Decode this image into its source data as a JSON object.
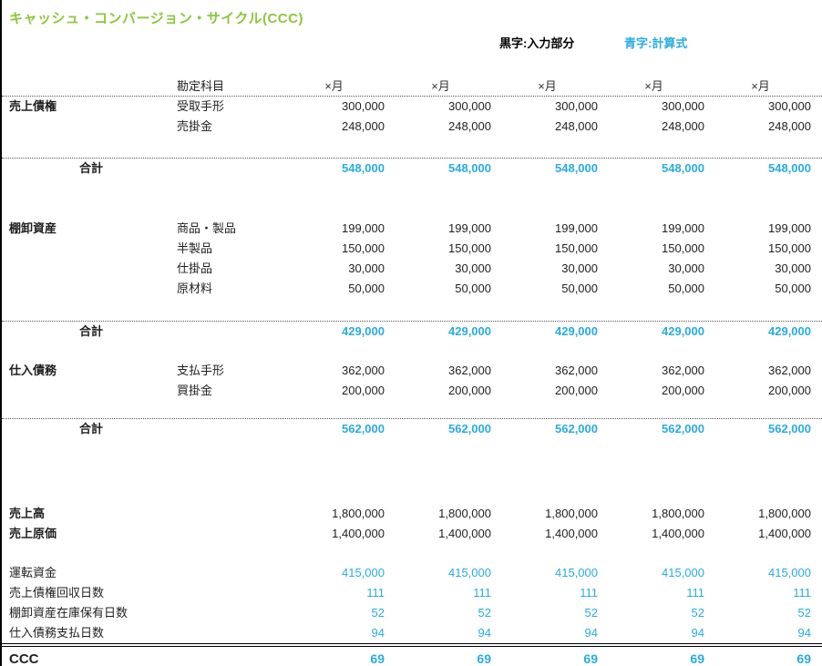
{
  "title": "キャッシュ・コンバージョン・サイクル(CCC)",
  "legend": {
    "black_label": "黒字:入力部分",
    "blue_label": "青字:計算式"
  },
  "colors": {
    "title_green": "#8CC63F",
    "formula_blue": "#29ABE2",
    "input_black": "#1f1f1f"
  },
  "table": {
    "header": {
      "account_label": "勘定科目",
      "month_labels": [
        "×月",
        "×月",
        "×月",
        "×月",
        "×月"
      ]
    },
    "sections": [
      {
        "name": "売上債権",
        "rows": [
          {
            "account": "受取手形",
            "values": [
              "300,000",
              "300,000",
              "300,000",
              "300,000",
              "300,000"
            ]
          },
          {
            "account": "売掛金",
            "values": [
              "248,000",
              "248,000",
              "248,000",
              "248,000",
              "248,000"
            ]
          }
        ],
        "total": {
          "label": "合計",
          "values": [
            "548,000",
            "548,000",
            "548,000",
            "548,000",
            "548,000"
          ]
        }
      },
      {
        "name": "棚卸資産",
        "rows": [
          {
            "account": "商品・製品",
            "values": [
              "199,000",
              "199,000",
              "199,000",
              "199,000",
              "199,000"
            ]
          },
          {
            "account": "半製品",
            "values": [
              "150,000",
              "150,000",
              "150,000",
              "150,000",
              "150,000"
            ]
          },
          {
            "account": "仕掛品",
            "values": [
              "30,000",
              "30,000",
              "30,000",
              "30,000",
              "30,000"
            ]
          },
          {
            "account": "原材料",
            "values": [
              "50,000",
              "50,000",
              "50,000",
              "50,000",
              "50,000"
            ]
          }
        ],
        "total": {
          "label": "合計",
          "values": [
            "429,000",
            "429,000",
            "429,000",
            "429,000",
            "429,000"
          ]
        }
      },
      {
        "name": "仕入債務",
        "rows": [
          {
            "account": "支払手形",
            "values": [
              "362,000",
              "362,000",
              "362,000",
              "362,000",
              "362,000"
            ]
          },
          {
            "account": "買掛金",
            "values": [
              "200,000",
              "200,000",
              "200,000",
              "200,000",
              "200,000"
            ]
          }
        ],
        "total": {
          "label": "合計",
          "values": [
            "562,000",
            "562,000",
            "562,000",
            "562,000",
            "562,000"
          ]
        }
      }
    ],
    "summary": [
      {
        "label": "売上高",
        "values": [
          "1,800,000",
          "1,800,000",
          "1,800,000",
          "1,800,000",
          "1,800,000"
        ]
      },
      {
        "label": "売上原価",
        "values": [
          "1,400,000",
          "1,400,000",
          "1,400,000",
          "1,400,000",
          "1,400,000"
        ]
      }
    ],
    "calculations": [
      {
        "label": "運転資金",
        "values": [
          "415,000",
          "415,000",
          "415,000",
          "415,000",
          "415,000"
        ]
      },
      {
        "label": "売上債権回収日数",
        "values": [
          "111",
          "111",
          "111",
          "111",
          "111"
        ]
      },
      {
        "label": "棚卸資産在庫保有日数",
        "values": [
          "52",
          "52",
          "52",
          "52",
          "52"
        ]
      },
      {
        "label": "仕入債務支払日数",
        "values": [
          "94",
          "94",
          "94",
          "94",
          "94"
        ]
      }
    ],
    "ccc": {
      "label": "CCC",
      "values": [
        "69",
        "69",
        "69",
        "69",
        "69"
      ]
    }
  }
}
